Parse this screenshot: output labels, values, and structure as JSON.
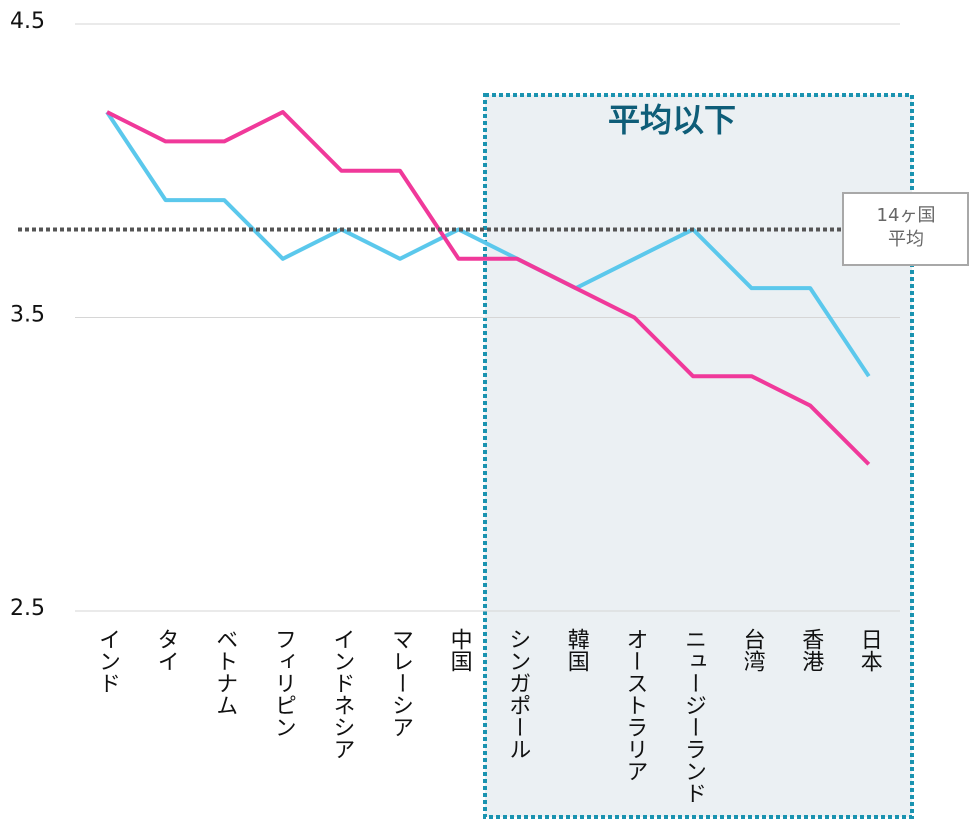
{
  "chart_data": {
    "type": "line",
    "categories": [
      "インド",
      "タイ",
      "ベトナム",
      "フィリピン",
      "インドネシア",
      "マレーシア",
      "中国",
      "シンガポール",
      "韓国",
      "オーストラリア",
      "ニュージーランド",
      "台湾",
      "香港",
      "日本"
    ],
    "series": [
      {
        "color": "#5bc8ec",
        "values": [
          4.2,
          3.9,
          3.9,
          3.7,
          3.8,
          3.7,
          3.8,
          3.7,
          3.6,
          3.7,
          3.8,
          3.6,
          3.6,
          3.3
        ]
      },
      {
        "color": "#f0399a",
        "values": [
          4.2,
          4.1,
          4.1,
          4.2,
          4.0,
          4.0,
          3.7,
          3.7,
          3.6,
          3.5,
          3.3,
          3.3,
          3.2,
          3.0
        ]
      }
    ],
    "ylim": [
      2.5,
      4.5
    ],
    "yticks": [
      2.5,
      3.5,
      4.5
    ],
    "grid": true,
    "reference_line": {
      "value": 3.8,
      "label": [
        "14ヶ国",
        "平均"
      ],
      "color": "#555555"
    },
    "highlight_label": "平均以下"
  }
}
